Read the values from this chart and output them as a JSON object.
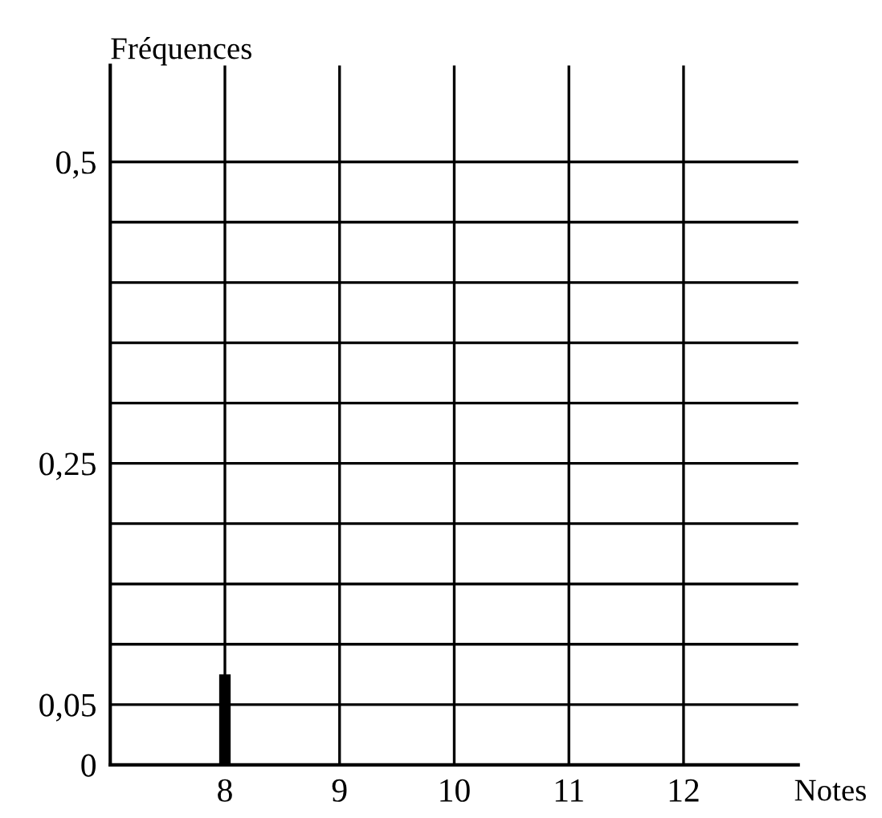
{
  "chart_data": {
    "type": "bar",
    "xlabel": "Notes",
    "ylabel": "Fréquences",
    "x": [
      8
    ],
    "values": [
      0.075
    ],
    "color": "#000000",
    "xlim": [
      7,
      13
    ],
    "xticks": [
      8,
      9,
      10,
      11,
      12
    ],
    "ylim": [
      0,
      0.58
    ],
    "yticks": [
      {
        "value": 0,
        "label": "0"
      },
      {
        "value": 0.05,
        "label": "0,05"
      },
      {
        "value": 0.1,
        "label": null
      },
      {
        "value": 0.15,
        "label": null
      },
      {
        "value": 0.2,
        "label": null
      },
      {
        "value": 0.25,
        "label": "0,25"
      },
      {
        "value": 0.3,
        "label": null
      },
      {
        "value": 0.35,
        "label": null
      },
      {
        "value": 0.4,
        "label": null
      },
      {
        "value": 0.45,
        "label": null
      },
      {
        "value": 0.5,
        "label": "0,5"
      }
    ],
    "grid": true
  }
}
